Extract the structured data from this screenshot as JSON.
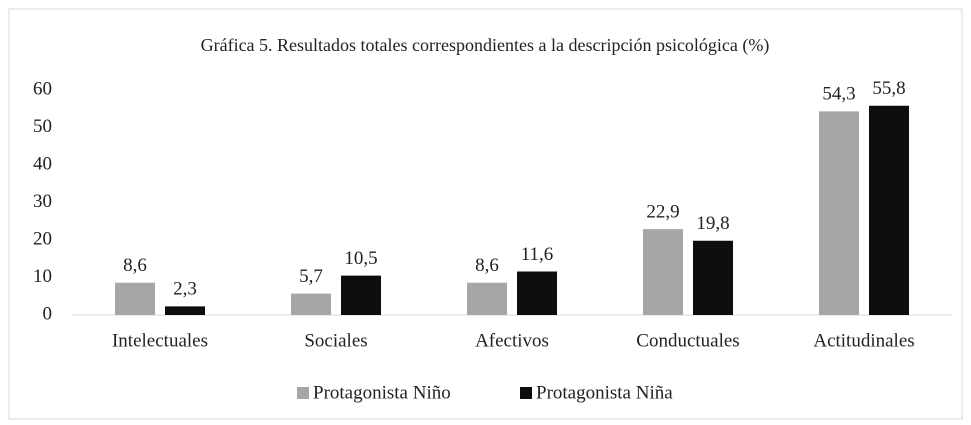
{
  "chart_data": {
    "type": "bar",
    "title": "Gráfica 5. Resultados totales correspondientes a la descripción psicológica (%)",
    "categories": [
      "Intelectuales",
      "Sociales",
      "Afectivos",
      "Conductuales",
      "Actitudinales"
    ],
    "series": [
      {
        "name": "Protagonista Niño",
        "color": "#a6a6a6",
        "values": [
          8.6,
          5.7,
          8.6,
          22.9,
          54.3
        ],
        "value_labels": [
          "8,6",
          "5,7",
          "8,6",
          "22,9",
          "54,3"
        ]
      },
      {
        "name": "Protagonista Niña",
        "color": "#0d0d0d",
        "values": [
          2.3,
          10.5,
          11.6,
          19.8,
          55.8
        ],
        "value_labels": [
          "2,3",
          "10,5",
          "11,6",
          "19,8",
          "55,8"
        ]
      }
    ],
    "ylim": [
      0,
      60
    ],
    "yticks": [
      0,
      10,
      20,
      30,
      40,
      50,
      60
    ],
    "grid": false,
    "legend": "bottom"
  }
}
